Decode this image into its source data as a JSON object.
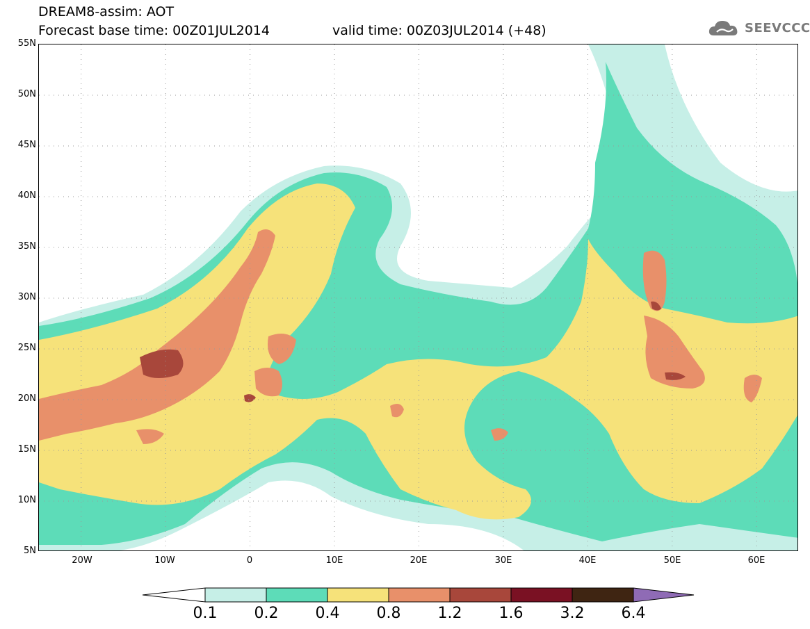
{
  "header": {
    "line1": "DREAM8-assim: AOT",
    "line2": "Forecast base time: 00Z01JUL2014",
    "valid": "valid time: 00Z03JUL2014 (+48)"
  },
  "logo": {
    "text": "SEEVCCC",
    "icon": "cloud-icon"
  },
  "map": {
    "lat_labels": [
      "55N",
      "50N",
      "45N",
      "40N",
      "35N",
      "30N",
      "25N",
      "20N",
      "15N",
      "10N",
      "5N"
    ],
    "lon_labels": [
      "20W",
      "10W",
      "0",
      "10E",
      "20E",
      "30E",
      "40E",
      "50E",
      "60E"
    ],
    "lat_range": [
      5,
      55
    ],
    "lon_range": [
      -25,
      65
    ],
    "grid": "dotted"
  },
  "colorbar": {
    "labels": [
      "0.1",
      "0.2",
      "0.4",
      "0.8",
      "1.2",
      "1.6",
      "3.2",
      "6.4"
    ],
    "colors": [
      "#c6efe7",
      "#5ddcb8",
      "#f6e27a",
      "#e8906a",
      "#a8473b",
      "#7a1123",
      "#3f2512",
      "#8f6bb5"
    ]
  }
}
